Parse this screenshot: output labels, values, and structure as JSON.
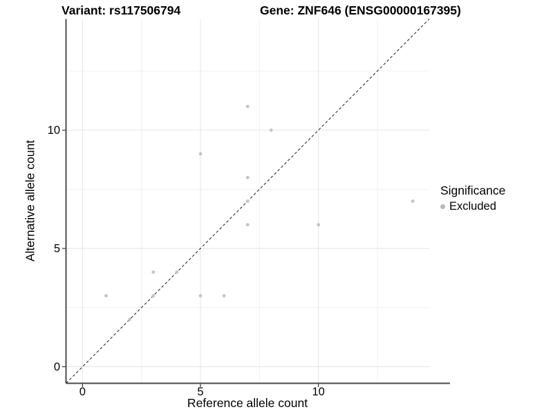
{
  "header": {
    "variant_title": "Variant: rs117506794",
    "gene_title": "Gene: ZNF646 (ENSG00000167395)"
  },
  "chart_data": {
    "type": "scatter",
    "title_left": "Variant: rs117506794",
    "title_right": "Gene: ZNF646 (ENSG00000167395)",
    "xlabel": "Reference allele count",
    "ylabel": "Alternative allele count",
    "points": [
      [
        1,
        3
      ],
      [
        2,
        2
      ],
      [
        3,
        3
      ],
      [
        3,
        4
      ],
      [
        4,
        4
      ],
      [
        5,
        3
      ],
      [
        5,
        9
      ],
      [
        6,
        3
      ],
      [
        7,
        6
      ],
      [
        7,
        7
      ],
      [
        7,
        8
      ],
      [
        7,
        11
      ],
      [
        8,
        10
      ],
      [
        10,
        6
      ],
      [
        14,
        7
      ]
    ],
    "xlim": [
      -0.7,
      14.7
    ],
    "ylim": [
      -0.7,
      14.7
    ],
    "x_tick_values": [
      0,
      5,
      10
    ],
    "x_tick_labels": [
      "0",
      "5",
      "10"
    ],
    "y_tick_values": [
      0,
      5,
      10
    ],
    "y_tick_labels": [
      "0",
      "5",
      "10"
    ],
    "x_minor_values": [
      2.5,
      7.5,
      12.5
    ],
    "y_minor_values": [
      2.5,
      7.5,
      12.5
    ],
    "reference_line": {
      "type": "identity",
      "dashed": true,
      "color": "#1a1a1a"
    },
    "point_color": "#c3c3c3",
    "grid_major_color": "#e4e4e4",
    "grid_minor_color": "#f0f0f0",
    "axis_color_bottom": "#4a4a4a",
    "axis_color_left": "#1a1a1a",
    "grid": true,
    "legend_position": "right"
  },
  "legend": {
    "title": "Significance",
    "items": [
      {
        "label": "Excluded",
        "color": "#b9b9b9"
      }
    ]
  }
}
